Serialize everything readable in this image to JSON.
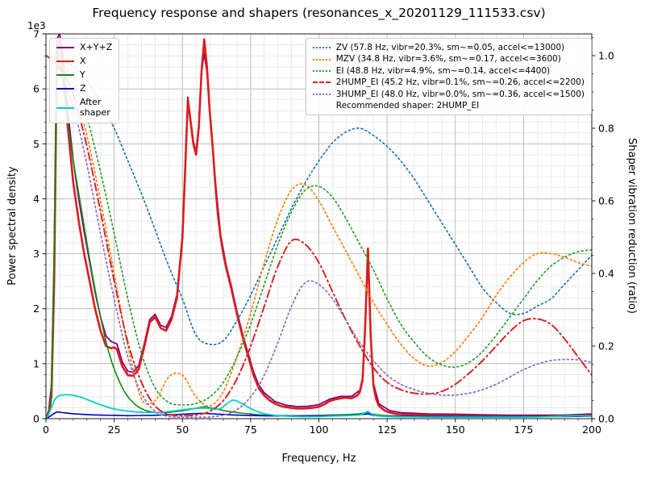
{
  "chart_data": {
    "type": "line",
    "title": "Frequency response and shapers (resonances_x_20201129_111533.csv)",
    "xlabel": "Frequency, Hz",
    "ylabel_left": "Power spectral density",
    "ylabel_right": "Shaper vibration reduction (ratio)",
    "left_axis_multiplier": "1e3",
    "recommended_shaper": "2HUMP_EI",
    "legend_note": "Recommended shaper: 2HUMP_EI",
    "xlim": [
      0,
      200
    ],
    "ylim_left": [
      0,
      7000
    ],
    "ylim_right": [
      0,
      1.06
    ],
    "x_ticks": {
      "values": [
        0,
        25,
        50,
        75,
        100,
        125,
        150,
        175,
        200
      ],
      "labels": [
        "0",
        "25",
        "50",
        "75",
        "100",
        "125",
        "150",
        "175",
        "200"
      ]
    },
    "y_left_ticks": {
      "values": [
        0,
        1000,
        2000,
        3000,
        4000,
        5000,
        6000,
        7000
      ],
      "labels": [
        "0",
        "1",
        "2",
        "3",
        "4",
        "5",
        "6",
        "7"
      ]
    },
    "y_right_ticks": {
      "values": [
        0.0,
        0.2,
        0.4,
        0.6,
        0.8,
        1.0
      ],
      "labels": [
        "0.0",
        "0.2",
        "0.4",
        "0.6",
        "0.8",
        "1.0"
      ]
    },
    "grid": {
      "major_color": "#b5b5b5",
      "minor_color": "#e0e0e0",
      "minor_x_step": 5,
      "minor_yl_step": 200,
      "minor_yr_step": 0.05
    },
    "frame_color": "#1a1a1a",
    "psd_series": [
      {
        "name": "sum",
        "label": "X+Y+Z",
        "color": "#800080",
        "style": "solid",
        "lw": 1.8,
        "smooth": false,
        "x": [
          0,
          1,
          2,
          3,
          4,
          5,
          6,
          7,
          8,
          10,
          12,
          14,
          16,
          18,
          20,
          22,
          24,
          26,
          28,
          30,
          32,
          34,
          36,
          38,
          40,
          42,
          44,
          46,
          48,
          50,
          51,
          52,
          53,
          54,
          55,
          56,
          57,
          58,
          59,
          60,
          62,
          64,
          66,
          68,
          70,
          72,
          74,
          76,
          78,
          80,
          84,
          88,
          92,
          96,
          100,
          104,
          108,
          112,
          115,
          116,
          117,
          118,
          119,
          120,
          122,
          126,
          130,
          140,
          150,
          160,
          170,
          180,
          190,
          200
        ],
        "y": [
          0,
          150,
          600,
          3000,
          6900,
          7000,
          6700,
          6100,
          5600,
          4700,
          4000,
          3400,
          2850,
          2300,
          1850,
          1500,
          1400,
          1360,
          1030,
          860,
          850,
          970,
          1360,
          1800,
          1900,
          1700,
          1660,
          1860,
          2260,
          3350,
          4550,
          5850,
          5450,
          5050,
          4850,
          5350,
          6300,
          6650,
          6300,
          5600,
          4350,
          3350,
          2800,
          2400,
          1950,
          1550,
          1200,
          860,
          610,
          470,
          310,
          245,
          220,
          225,
          255,
          355,
          405,
          405,
          515,
          740,
          1700,
          3050,
          1520,
          640,
          270,
          145,
          110,
          85,
          80,
          70,
          65,
          65,
          65,
          85
        ]
      },
      {
        "name": "x",
        "label": "X",
        "color": "#dd1c1c",
        "style": "solid",
        "lw": 2.6,
        "smooth": false,
        "x": [
          0,
          1,
          2,
          3,
          4,
          5,
          6,
          7,
          8,
          10,
          12,
          14,
          16,
          18,
          20,
          22,
          24,
          25,
          26,
          27,
          28,
          30,
          32,
          34,
          36,
          38,
          40,
          42,
          44,
          46,
          48,
          50,
          51,
          52,
          53,
          54,
          55,
          56,
          57,
          58,
          59,
          60,
          61,
          62,
          63,
          64,
          65,
          66,
          68,
          70,
          72,
          74,
          76,
          78,
          80,
          82,
          84,
          86,
          88,
          90,
          92,
          94,
          96,
          98,
          100,
          102,
          104,
          106,
          108,
          110,
          112,
          114,
          115,
          116,
          117,
          118,
          119,
          120,
          121,
          122,
          124,
          126,
          128,
          130,
          135,
          140,
          145,
          150,
          155,
          160,
          165,
          170,
          175,
          180,
          185,
          190,
          195,
          200
        ],
        "y": [
          0,
          100,
          400,
          2500,
          6600,
          6900,
          6500,
          5900,
          5300,
          4300,
          3600,
          3000,
          2500,
          2000,
          1600,
          1320,
          1280,
          1300,
          1260,
          1100,
          950,
          790,
          780,
          900,
          1300,
          1750,
          1850,
          1650,
          1600,
          1800,
          2200,
          3300,
          4500,
          5800,
          5400,
          5000,
          4800,
          5300,
          6300,
          6900,
          6400,
          5600,
          5000,
          4300,
          3700,
          3300,
          3000,
          2750,
          2350,
          1900,
          1500,
          1150,
          800,
          550,
          420,
          330,
          270,
          230,
          210,
          195,
          185,
          185,
          190,
          200,
          215,
          260,
          320,
          350,
          370,
          380,
          370,
          420,
          480,
          700,
          1700,
          3100,
          1500,
          600,
          350,
          230,
          150,
          110,
          90,
          80,
          65,
          60,
          55,
          55,
          50,
          50,
          48,
          45,
          45,
          45,
          45,
          45,
          50,
          60
        ]
      },
      {
        "name": "y",
        "label": "Y",
        "color": "#0f8c0f",
        "style": "solid",
        "lw": 1.6,
        "smooth": true,
        "x": [
          0,
          1,
          2,
          3,
          4,
          5,
          6,
          7,
          8,
          10,
          12,
          14,
          16,
          18,
          20,
          22,
          24,
          26,
          28,
          30,
          32,
          34,
          36,
          38,
          40,
          44,
          48,
          52,
          55,
          58,
          60,
          63,
          66,
          70,
          75,
          80,
          90,
          100,
          110,
          115,
          118,
          120,
          125,
          140,
          160,
          180,
          200
        ],
        "y": [
          0,
          100,
          500,
          2800,
          6500,
          6400,
          6200,
          5800,
          5400,
          4700,
          4100,
          3500,
          2900,
          2350,
          1850,
          1400,
          1050,
          780,
          560,
          400,
          290,
          210,
          160,
          130,
          115,
          110,
          130,
          160,
          190,
          215,
          200,
          170,
          140,
          110,
          85,
          65,
          55,
          60,
          75,
          90,
          110,
          80,
          55,
          45,
          45,
          45,
          55
        ]
      },
      {
        "name": "z",
        "label": "Z",
        "color": "#0000cc",
        "style": "solid",
        "lw": 1.6,
        "smooth": true,
        "x": [
          0,
          2,
          4,
          6,
          8,
          10,
          15,
          20,
          25,
          30,
          35,
          40,
          45,
          50,
          55,
          58,
          62,
          66,
          70,
          80,
          90,
          100,
          110,
          115,
          118,
          120,
          125,
          140,
          160,
          180,
          200
        ],
        "y": [
          0,
          60,
          120,
          110,
          100,
          90,
          75,
          65,
          60,
          55,
          58,
          62,
          70,
          80,
          92,
          95,
          85,
          75,
          65,
          52,
          48,
          52,
          60,
          70,
          85,
          60,
          45,
          40,
          38,
          38,
          45
        ]
      },
      {
        "name": "after_shaper",
        "label": "After\nshaper",
        "color": "#00cfcf",
        "style": "solid",
        "lw": 1.8,
        "smooth": true,
        "x": [
          0,
          1,
          2,
          3,
          4,
          5,
          6,
          8,
          10,
          12,
          14,
          16,
          18,
          20,
          22,
          24,
          26,
          28,
          30,
          32,
          34,
          36,
          38,
          40,
          42,
          44,
          46,
          48,
          50,
          52,
          54,
          56,
          58,
          60,
          62,
          64,
          66,
          68,
          69,
          70,
          72,
          74,
          76,
          78,
          80,
          84,
          88,
          92,
          96,
          100,
          104,
          108,
          112,
          115,
          116,
          117,
          118,
          119,
          120,
          122,
          125,
          130,
          140,
          150,
          160,
          170,
          180,
          190,
          195,
          200
        ],
        "y": [
          0,
          80,
          200,
          330,
          390,
          420,
          430,
          435,
          425,
          400,
          370,
          330,
          290,
          255,
          220,
          190,
          168,
          150,
          138,
          128,
          120,
          114,
          112,
          112,
          116,
          124,
          135,
          148,
          162,
          172,
          182,
          190,
          193,
          185,
          172,
          185,
          260,
          330,
          335,
          320,
          270,
          210,
          160,
          120,
          90,
          60,
          45,
          38,
          36,
          38,
          45,
          52,
          58,
          68,
          85,
          110,
          130,
          95,
          65,
          48,
          38,
          32,
          28,
          28,
          28,
          28,
          30,
          45,
          55,
          45
        ]
      }
    ],
    "shaper_x": [
      0,
      5,
      10,
      15,
      20,
      25,
      30,
      35,
      40,
      45,
      50,
      55,
      60,
      65,
      70,
      75,
      80,
      85,
      90,
      95,
      100,
      105,
      110,
      115,
      120,
      125,
      130,
      135,
      140,
      145,
      150,
      155,
      160,
      165,
      170,
      175,
      180,
      185,
      190,
      195,
      200
    ],
    "shaper_series": [
      {
        "name": "ZV",
        "label": "ZV (57.8 Hz, vibr=20.3%, sm~=0.05, accel<=13000)",
        "color": "#1f77b4",
        "style": "dotted",
        "lw": 1.7,
        "y": [
          1.0,
          0.99,
          0.97,
          0.93,
          0.87,
          0.8,
          0.71,
          0.62,
          0.52,
          0.42,
          0.33,
          0.23,
          0.205,
          0.215,
          0.27,
          0.34,
          0.42,
          0.5,
          0.58,
          0.65,
          0.71,
          0.76,
          0.79,
          0.8,
          0.78,
          0.75,
          0.71,
          0.66,
          0.6,
          0.54,
          0.48,
          0.42,
          0.36,
          0.32,
          0.29,
          0.29,
          0.31,
          0.33,
          0.37,
          0.41,
          0.45
        ]
      },
      {
        "name": "MZV",
        "label": "MZV (34.8 Hz, vibr=3.6%, sm~=0.17, accel<=3600)",
        "color": "#ff7f0e",
        "style": "dotted",
        "lw": 1.7,
        "y": [
          1.0,
          0.98,
          0.91,
          0.78,
          0.6,
          0.4,
          0.2,
          0.055,
          0.05,
          0.115,
          0.12,
          0.06,
          0.035,
          0.075,
          0.17,
          0.29,
          0.43,
          0.55,
          0.63,
          0.645,
          0.6,
          0.53,
          0.46,
          0.39,
          0.32,
          0.26,
          0.205,
          0.165,
          0.145,
          0.155,
          0.185,
          0.23,
          0.28,
          0.34,
          0.39,
          0.43,
          0.455,
          0.455,
          0.445,
          0.43,
          0.42
        ]
      },
      {
        "name": "EI",
        "label": "EI (48.8 Hz, vibr=4.9%, sm~=0.14, accel<=4400)",
        "color": "#2ca02c",
        "style": "dotted",
        "lw": 1.7,
        "y": [
          1.0,
          0.985,
          0.93,
          0.83,
          0.68,
          0.51,
          0.33,
          0.18,
          0.085,
          0.045,
          0.038,
          0.042,
          0.06,
          0.1,
          0.17,
          0.26,
          0.37,
          0.48,
          0.57,
          0.63,
          0.64,
          0.61,
          0.55,
          0.48,
          0.41,
          0.33,
          0.26,
          0.21,
          0.17,
          0.148,
          0.142,
          0.155,
          0.185,
          0.23,
          0.28,
          0.33,
          0.38,
          0.42,
          0.445,
          0.46,
          0.465
        ]
      },
      {
        "name": "2HUMP_EI",
        "label": "2HUMP_EI (45.2 Hz, vibr=0.1%, sm~=0.26, accel<=2200)",
        "color": "#d62728",
        "style": "dashdot",
        "lw": 2.0,
        "y": [
          1.0,
          0.97,
          0.89,
          0.75,
          0.57,
          0.38,
          0.21,
          0.1,
          0.035,
          0.012,
          0.008,
          0.01,
          0.02,
          0.05,
          0.11,
          0.2,
          0.31,
          0.42,
          0.49,
          0.48,
          0.43,
          0.35,
          0.27,
          0.2,
          0.14,
          0.1,
          0.08,
          0.07,
          0.068,
          0.075,
          0.095,
          0.125,
          0.16,
          0.2,
          0.24,
          0.27,
          0.275,
          0.26,
          0.22,
          0.17,
          0.12
        ]
      },
      {
        "name": "3HUMP_EI",
        "label": "3HUMP_EI (48.0 Hz, vibr=0.0%, sm~=0.36, accel<=1500)",
        "color": "#9467bd",
        "style": "dotted",
        "lw": 1.7,
        "y": [
          1.0,
          0.96,
          0.86,
          0.7,
          0.51,
          0.33,
          0.17,
          0.07,
          0.02,
          0.006,
          0.004,
          0.004,
          0.005,
          0.01,
          0.025,
          0.06,
          0.12,
          0.21,
          0.31,
          0.375,
          0.37,
          0.33,
          0.27,
          0.21,
          0.16,
          0.12,
          0.095,
          0.08,
          0.07,
          0.065,
          0.065,
          0.07,
          0.08,
          0.095,
          0.115,
          0.135,
          0.15,
          0.16,
          0.163,
          0.162,
          0.155
        ]
      }
    ]
  }
}
